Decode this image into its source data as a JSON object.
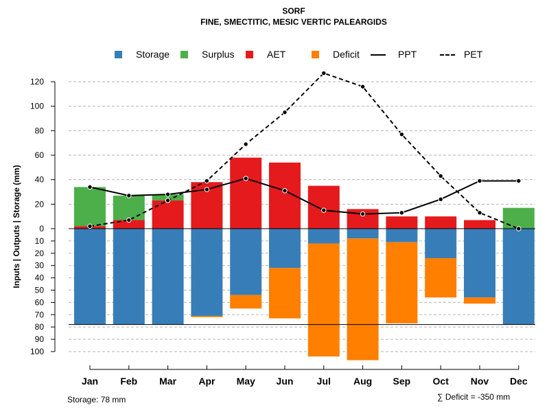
{
  "chart_data": {
    "type": "bar",
    "title": "SORF",
    "subtitle": "FINE, SMECTITIC, MESIC VERTIC PALEARGIDS",
    "ylabel": "Inputs | Outputs | Storage     (mm)",
    "xlabel": "",
    "categories": [
      "Jan",
      "Feb",
      "Mar",
      "Apr",
      "May",
      "Jun",
      "Jul",
      "Aug",
      "Sep",
      "Oct",
      "Nov",
      "Dec"
    ],
    "upper_ylim": [
      0,
      120
    ],
    "upper_ticks": [
      "0",
      "20",
      "40",
      "60",
      "80",
      "100",
      "120"
    ],
    "lower_ylim": [
      0,
      100
    ],
    "lower_ticks": [
      "10",
      "20",
      "30",
      "40",
      "50",
      "60",
      "70",
      "80",
      "90",
      "100"
    ],
    "series": [
      {
        "name": "Storage",
        "color": "#377EB8",
        "position": "below",
        "values": [
          78,
          78,
          78,
          71,
          54,
          32,
          12,
          8,
          11,
          24,
          56,
          78
        ]
      },
      {
        "name": "Deficit",
        "color": "#FF7F00",
        "position": "below",
        "values": [
          0,
          0,
          0,
          1,
          11,
          41,
          92,
          99,
          66,
          32,
          5,
          0
        ]
      },
      {
        "name": "AET",
        "color": "#E41A1C",
        "position": "above",
        "values": [
          2,
          7,
          23,
          38,
          58,
          54,
          35,
          16,
          10,
          10,
          7,
          0
        ]
      },
      {
        "name": "Surplus",
        "color": "#4DAF4A",
        "position": "above",
        "values": [
          32,
          20,
          5,
          0,
          0,
          0,
          0,
          0,
          0,
          0,
          0,
          17
        ]
      },
      {
        "name": "PPT",
        "color": "#000000",
        "style": "solid",
        "values": [
          34,
          27,
          28,
          32,
          41,
          31,
          15,
          12,
          13,
          24,
          39,
          39
        ]
      },
      {
        "name": "PET",
        "color": "#000000",
        "style": "dashed",
        "values": [
          2,
          7,
          23,
          39,
          69,
          95,
          127,
          116,
          77,
          43,
          13,
          0
        ]
      }
    ],
    "storage_capacity": 78,
    "legend": [
      {
        "label": "Storage",
        "kind": "box",
        "color": "#377EB8"
      },
      {
        "label": "Surplus",
        "kind": "box",
        "color": "#4DAF4A"
      },
      {
        "label": "AET",
        "kind": "box",
        "color": "#E41A1C"
      },
      {
        "label": "Deficit",
        "kind": "box",
        "color": "#FF7F00"
      },
      {
        "label": "PPT",
        "kind": "solid"
      },
      {
        "label": "PET",
        "kind": "dashed"
      }
    ],
    "legend_position": "top"
  },
  "footer": {
    "storage_text": "Storage: 78 mm",
    "deficit_text": "∑ Deficit = -350 mm"
  }
}
